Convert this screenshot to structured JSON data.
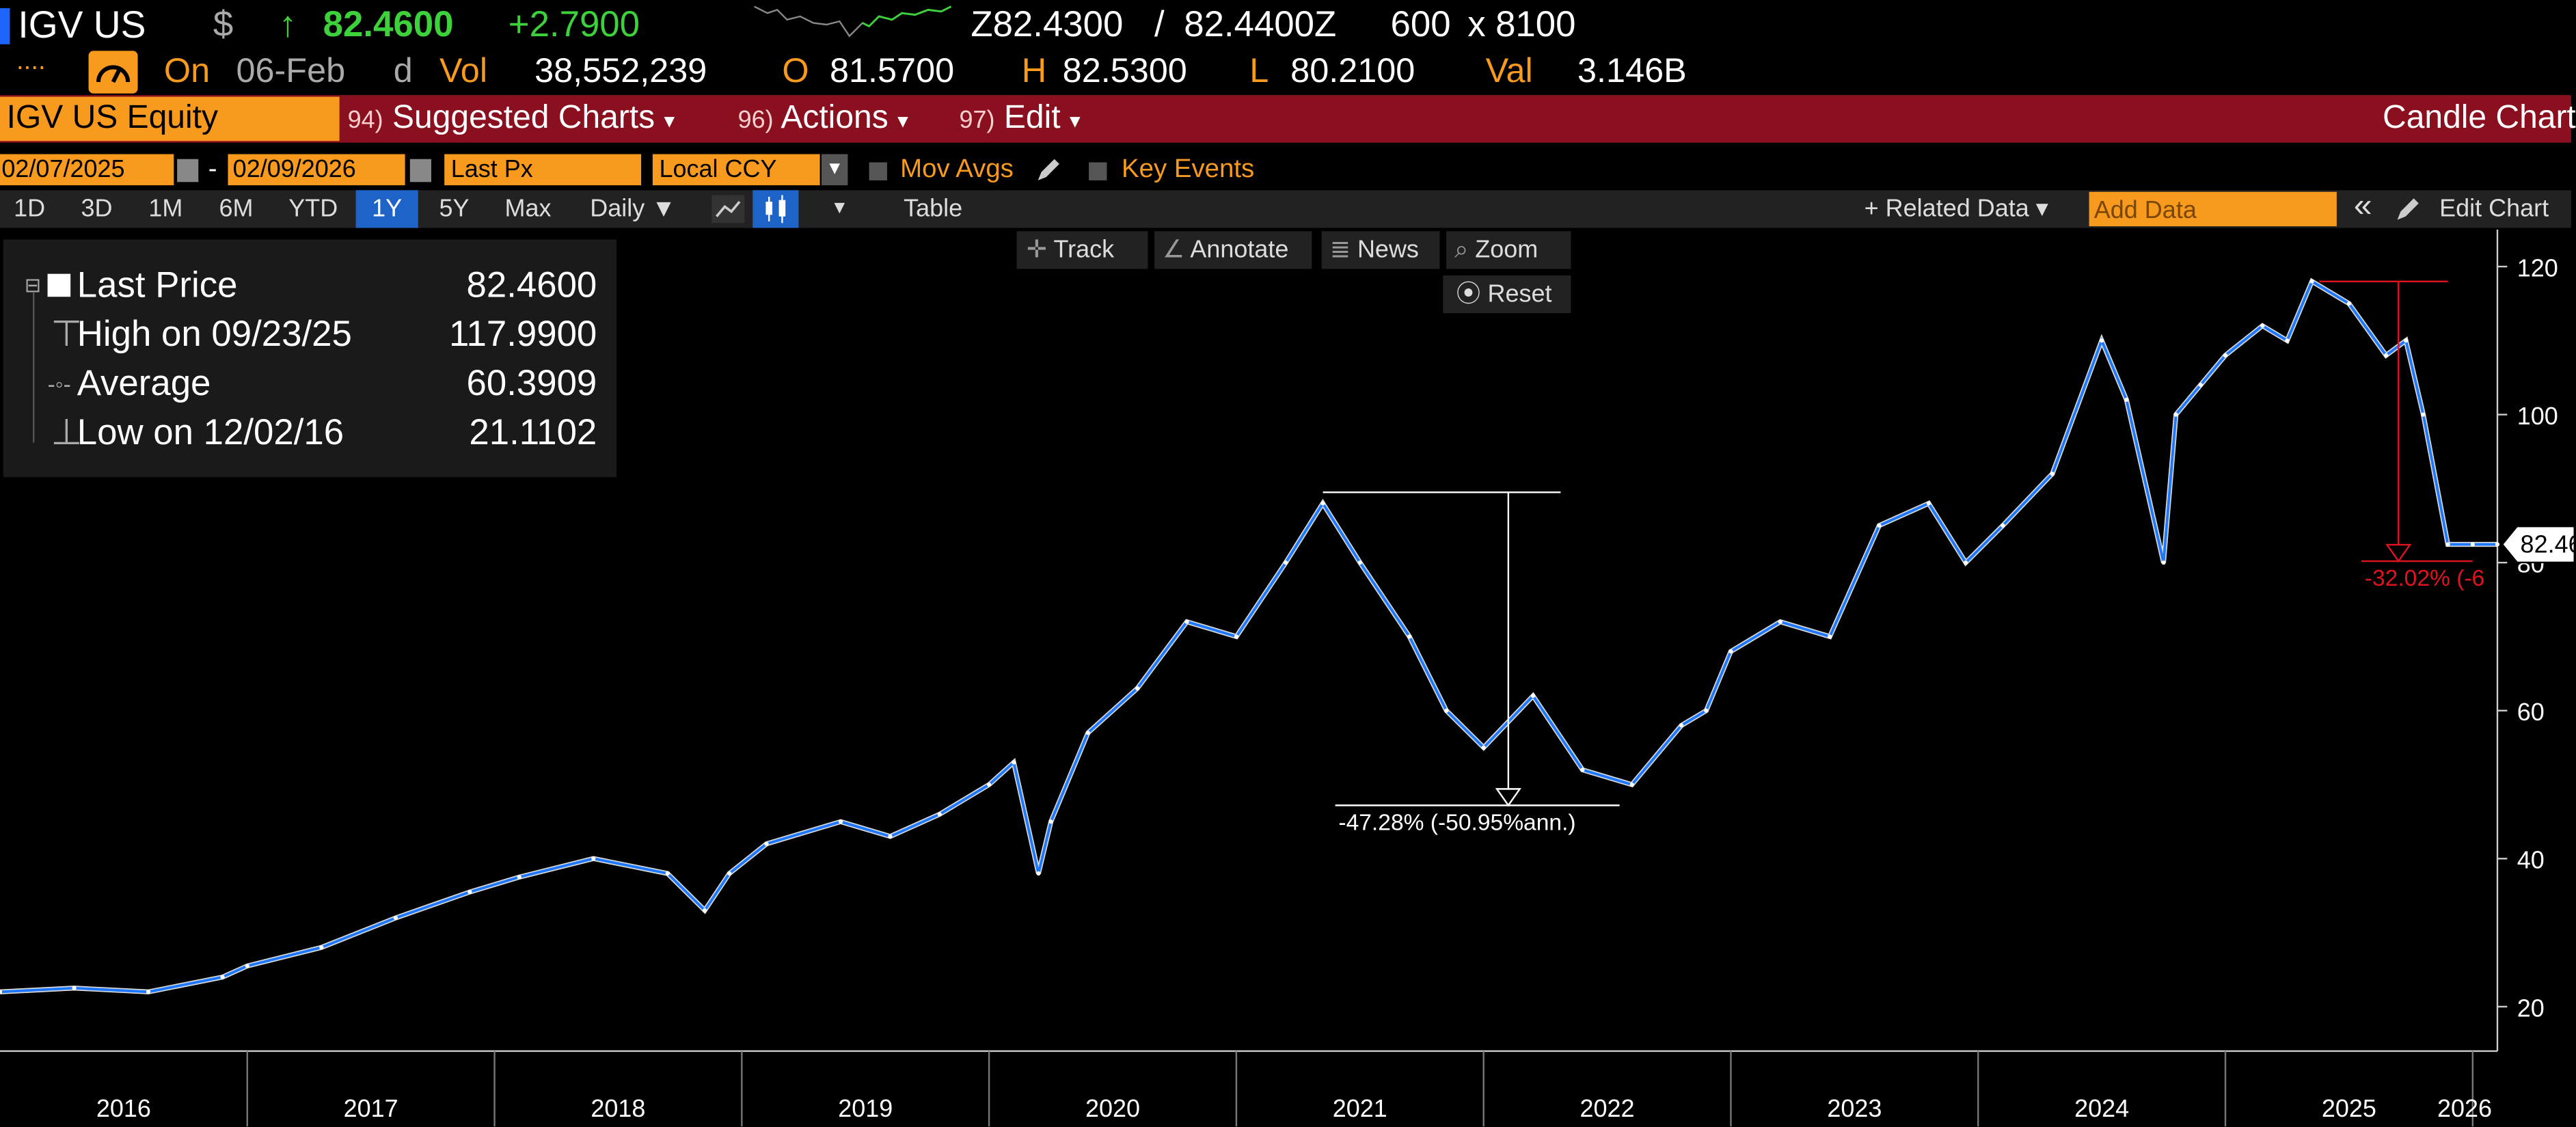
{
  "header": {
    "ticker": "IGV US",
    "currency_symbol": "$",
    "arrow": "↑",
    "last_price": "82.4600",
    "change": "+2.7900",
    "bid": "Z82.4300",
    "slash": "/",
    "ask": "82.4400Z",
    "bid_size": "600",
    "x": "x",
    "ask_size": "8100"
  },
  "row2": {
    "dots": "....",
    "on_label": "On",
    "date": "06-Feb",
    "d": "d",
    "vol_label": "Vol",
    "vol": "38,552,239",
    "o_label": "O",
    "open": "81.5700",
    "h_label": "H",
    "high": "82.5300",
    "l_label": "L",
    "low": "80.2100",
    "val_label": "Val",
    "val": "3.146B"
  },
  "menubar": {
    "security": "IGV US Equity",
    "suggested_num": "94)",
    "suggested": "Suggested Charts",
    "actions_num": "96)",
    "actions": "Actions",
    "edit_num": "97)",
    "edit": "Edit",
    "chart_type": "Candle Chart",
    "caret": "▾"
  },
  "settings": {
    "start_date": "02/07/2025",
    "dash": "-",
    "end_date": "02/09/2026",
    "field": "Last Px",
    "currency": "Local CCY",
    "mov_avgs": "Mov Avgs",
    "key_events": "Key Events"
  },
  "toolbar": {
    "periods": [
      "1D",
      "3D",
      "1M",
      "6M",
      "YTD",
      "1Y",
      "5Y",
      "Max"
    ],
    "selected_period": "1Y",
    "frequency": "Daily ▼",
    "table": "Table",
    "related_data": "+ Related Data ▾",
    "add_data_placeholder": "Add Data",
    "collapse": "«",
    "edit_chart": "Edit Chart"
  },
  "chart_tools": {
    "track": "Track",
    "annotate": "Annotate",
    "news": "News",
    "zoom": "Zoom",
    "reset": "Reset"
  },
  "legend": {
    "last_price_label": "Last Price",
    "last_price_value": "82.4600",
    "high_label": "High on 09/23/25",
    "high_value": "117.9900",
    "average_label": "Average",
    "average_value": "60.3909",
    "low_label": "Low on 12/02/16",
    "low_value": "21.1102"
  },
  "colors": {
    "price_line": "#1e78ff",
    "accent_orange": "#f79a1e",
    "menu_red": "#8a1020",
    "drawdown_red": "#e0141e",
    "up_green": "#3dd23c"
  },
  "chart_data": {
    "type": "line",
    "title": "IGV US Equity",
    "series": [
      {
        "name": "Last Price",
        "x": [
          2016.0,
          2016.3,
          2016.6,
          2016.9,
          2017.0,
          2017.3,
          2017.6,
          2017.9,
          2018.1,
          2018.4,
          2018.7,
          2018.85,
          2018.95,
          2019.1,
          2019.4,
          2019.6,
          2019.8,
          2020.0,
          2020.1,
          2020.2,
          2020.25,
          2020.4,
          2020.6,
          2020.8,
          2021.0,
          2021.2,
          2021.35,
          2021.5,
          2021.7,
          2021.85,
          2022.0,
          2022.2,
          2022.4,
          2022.6,
          2022.8,
          2022.9,
          2023.0,
          2023.2,
          2023.4,
          2023.6,
          2023.8,
          2023.95,
          2024.1,
          2024.3,
          2024.5,
          2024.6,
          2024.75,
          2024.8,
          2024.9,
          2025.0,
          2025.15,
          2025.25,
          2025.35,
          2025.5,
          2025.65,
          2025.73,
          2025.8,
          2025.9,
          2026.0,
          2026.1
        ],
        "y": [
          22.0,
          22.5,
          22.0,
          24.0,
          25.5,
          28.0,
          32.0,
          35.5,
          37.5,
          40.0,
          38.0,
          33.0,
          38.0,
          42.0,
          45.0,
          43.0,
          46.0,
          50.0,
          53.0,
          38.0,
          45.0,
          57.0,
          63.0,
          72.0,
          70.0,
          80.0,
          88.0,
          80.0,
          70.0,
          60.0,
          55.0,
          62.0,
          52.0,
          50.0,
          58.0,
          60.0,
          68.0,
          72.0,
          70.0,
          85.0,
          88.0,
          80.0,
          85.0,
          92.0,
          110.0,
          102.0,
          80.0,
          100.0,
          104.0,
          108.0,
          112.0,
          110.0,
          118.0,
          115.0,
          108.0,
          110.0,
          100.0,
          82.46,
          82.46,
          82.46
        ]
      }
    ],
    "xlabel": "",
    "ylabel": "",
    "x_ticks": [
      "2016",
      "2017",
      "2018",
      "2019",
      "2020",
      "2021",
      "2022",
      "2023",
      "2024",
      "2025",
      "2026"
    ],
    "y_ticks": [
      20,
      40,
      60,
      80,
      100,
      120
    ],
    "ylim": [
      14,
      125
    ],
    "last_price_tag": "82.46",
    "annotations": [
      {
        "label": "-47.28% (-50.95%ann.)",
        "from": 89.5,
        "to": 47.2
      },
      {
        "label": "-32.02% (-6",
        "from": 117.99,
        "to": 80.2
      }
    ]
  }
}
